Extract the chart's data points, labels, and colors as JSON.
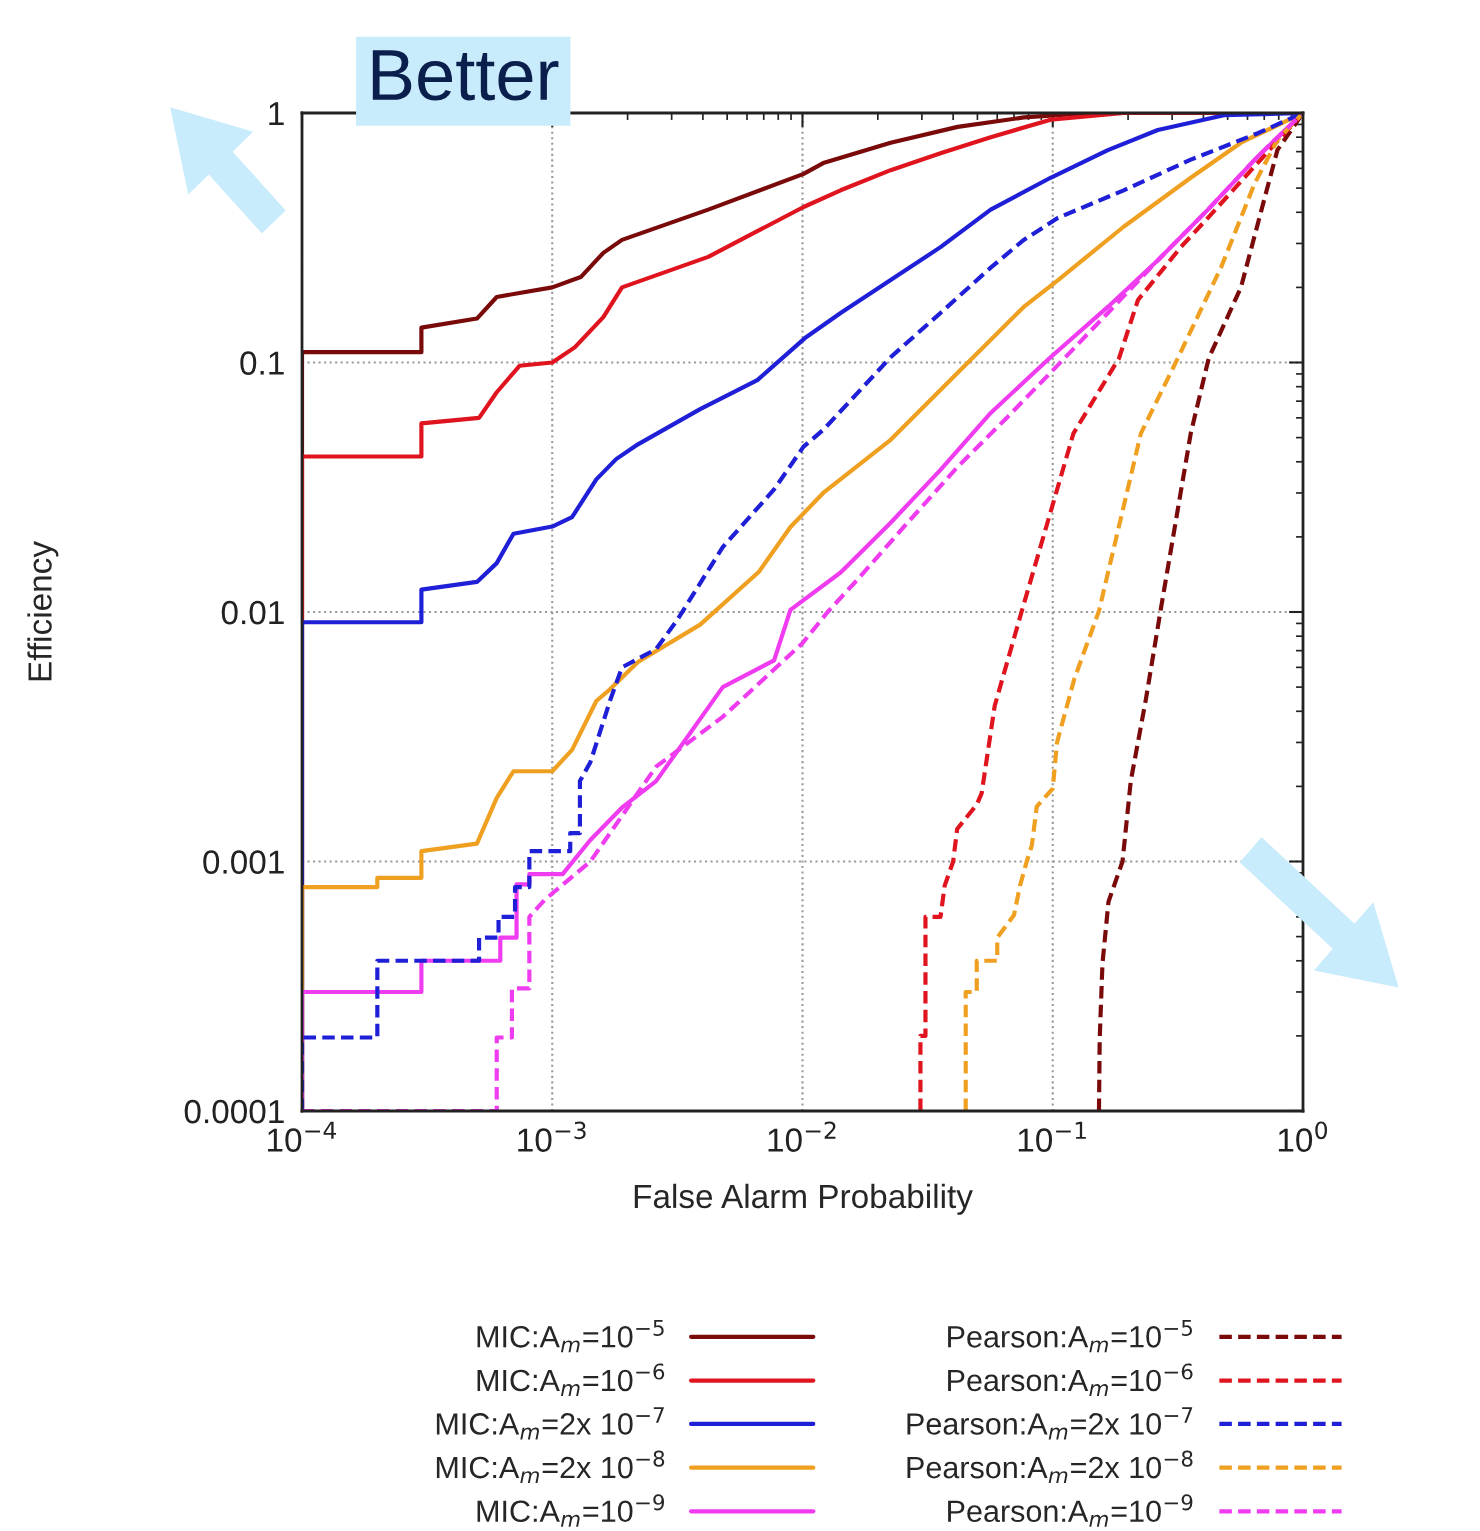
{
  "chart_data": {
    "type": "line",
    "xlabel": "False Alarm Probability",
    "ylabel": "Efficiency",
    "log": "xy",
    "grid": true,
    "legend": "bottom",
    "xlim": [
      0.0001,
      1
    ],
    "ylim": [
      0.0001,
      1
    ],
    "xticks": [
      {
        "value": 0.0001,
        "label": "10$^{−4}$"
      },
      {
        "value": 0.001,
        "label": "10$^{−3}$"
      },
      {
        "value": 0.01,
        "label": "10$^{−2}$"
      },
      {
        "value": 0.1,
        "label": "10$^{−1}$"
      },
      {
        "value": 1,
        "label": "10$^{0}$"
      }
    ],
    "yticks": [
      {
        "value": 0.0001,
        "label": "0.0001"
      },
      {
        "value": 0.001,
        "label": "0.001"
      },
      {
        "value": 0.01,
        "label": "0.01"
      },
      {
        "value": 0.1,
        "label": "0.1"
      },
      {
        "value": 1,
        "label": "1"
      }
    ],
    "annotations": [
      "Better"
    ],
    "series": [
      {
        "name": "MIC:A$_{m}$=10$^{−5}$",
        "color": "#7a0a0a",
        "line_style": "solid",
        "x": [
          0.0001,
          0.0001,
          0.0003,
          0.0003,
          0.0005,
          0.0006,
          0.00074,
          0.001,
          0.0013,
          0.0016,
          0.0019,
          0.0042,
          0.0101,
          0.0121,
          0.0225,
          0.0417,
          0.0766,
          0.143,
          1
        ],
        "values": [
          0.0001,
          0.11,
          0.11,
          0.138,
          0.15,
          0.183,
          0.19,
          0.2,
          0.22,
          0.275,
          0.31,
          0.41,
          0.57,
          0.63,
          0.76,
          0.88,
          0.96,
          1,
          1
        ]
      },
      {
        "name": "MIC:A$_{m}$=10$^{−6}$",
        "color": "#e0141e",
        "line_style": "solid",
        "x": [
          0.0001,
          0.0001,
          0.0003,
          0.0003,
          0.00051,
          0.0006,
          0.00074,
          0.001,
          0.00123,
          0.0016,
          0.0019,
          0.0042,
          0.0101,
          0.0142,
          0.0225,
          0.0356,
          0.0565,
          0.098,
          0.192,
          1
        ],
        "values": [
          0.0001,
          0.042,
          0.042,
          0.057,
          0.06,
          0.076,
          0.097,
          0.1,
          0.115,
          0.152,
          0.2,
          0.265,
          0.42,
          0.49,
          0.59,
          0.69,
          0.8,
          0.94,
          1,
          1
        ]
      },
      {
        "name": "MIC:A$_{m}$=2x 10$^{−7}$",
        "color": "#1f1fd8",
        "line_style": "solid",
        "x": [
          0.0001,
          0.0001,
          0.0003,
          0.0003,
          0.0005,
          0.0006,
          0.0007,
          0.001,
          0.0012,
          0.0015,
          0.0018,
          0.0022,
          0.0039,
          0.0066,
          0.0102,
          0.0142,
          0.0225,
          0.0356,
          0.0565,
          0.098,
          0.166,
          0.263,
          0.483,
          1
        ],
        "values": [
          0.0001,
          0.0091,
          0.0091,
          0.0123,
          0.0132,
          0.0157,
          0.0206,
          0.022,
          0.024,
          0.034,
          0.041,
          0.047,
          0.065,
          0.085,
          0.125,
          0.158,
          0.214,
          0.29,
          0.41,
          0.55,
          0.71,
          0.855,
          0.98,
          1
        ]
      },
      {
        "name": "MIC:A$_{m}$=2x 10$^{−8}$",
        "color": "#f0a020",
        "line_style": "solid",
        "x": [
          0.0001,
          0.0001,
          0.0002,
          0.0002,
          0.0003,
          0.0003,
          0.0005,
          0.0006,
          0.0007,
          0.001,
          0.0012,
          0.0015,
          0.0017,
          0.0022,
          0.0039,
          0.0067,
          0.00895,
          0.0121,
          0.0225,
          0.0417,
          0.0766,
          0.105,
          0.192,
          0.356,
          0.565,
          1
        ],
        "values": [
          0.0001,
          0.00079,
          0.00079,
          0.00086,
          0.00086,
          0.0011,
          0.00118,
          0.0018,
          0.0023,
          0.0023,
          0.0028,
          0.0044,
          0.0049,
          0.0063,
          0.0089,
          0.0145,
          0.0219,
          0.03,
          0.049,
          0.091,
          0.167,
          0.214,
          0.35,
          0.55,
          0.76,
          1
        ]
      },
      {
        "name": "MIC:A$_{m}$=10$^{−9}$",
        "color": "#f03cf0",
        "line_style": "solid",
        "x": [
          0.0001,
          0.0001,
          0.0003,
          0.0003,
          0.00062,
          0.00062,
          0.00072,
          0.00072,
          0.00081,
          0.00081,
          0.0011,
          0.00142,
          0.00192,
          0.0026,
          0.0048,
          0.0077,
          0.00895,
          0.0142,
          0.0225,
          0.0356,
          0.0565,
          0.098,
          0.166,
          0.263,
          0.417,
          0.66,
          1
        ],
        "values": [
          0.0001,
          0.0003,
          0.0003,
          0.0004,
          0.0004,
          0.000495,
          0.000495,
          0.00081,
          0.00081,
          0.00089,
          0.00089,
          0.00122,
          0.00166,
          0.0021,
          0.005,
          0.0064,
          0.0102,
          0.0144,
          0.0228,
          0.0371,
          0.0628,
          0.105,
          0.167,
          0.257,
          0.41,
          0.67,
          1
        ]
      },
      {
        "name": "Pearson:A$_{m}$=10$^{−5}$",
        "color": "#7a0a0a",
        "line_style": "dashed",
        "x": [
          0.153,
          0.154,
          0.158,
          0.167,
          0.19,
          0.205,
          0.235,
          0.27,
          0.356,
          0.42,
          0.565,
          0.7,
          0.79,
          1
        ],
        "values": [
          0.0001,
          0.000193,
          0.00039,
          0.00069,
          0.001,
          0.0021,
          0.0044,
          0.0102,
          0.052,
          0.104,
          0.2,
          0.45,
          0.71,
          1
        ]
      },
      {
        "name": "Pearson:A$_{m}$=10$^{−6}$",
        "color": "#e0141e",
        "line_style": "dashed",
        "x": [
          0.0296,
          0.0296,
          0.031,
          0.031,
          0.0356,
          0.037,
          0.04,
          0.0415,
          0.0497,
          0.052,
          0.0586,
          0.075,
          0.121,
          0.184,
          0.219,
          0.325,
          0.417,
          1
        ],
        "values": [
          0.0001,
          0.0002,
          0.0002,
          0.0006,
          0.0006,
          0.0008,
          0.001,
          0.00135,
          0.00169,
          0.00188,
          0.0042,
          0.01,
          0.052,
          0.104,
          0.178,
          0.29,
          0.38,
          1
        ]
      },
      {
        "name": "Pearson:A$_{m}$=2x 10$^{−7}$",
        "color": "#1f1fd8",
        "line_style": "dashed",
        "x": [
          0.0001,
          0.0001,
          0.0002,
          0.0002,
          0.00051,
          0.00051,
          0.00061,
          0.00061,
          0.00071,
          0.00071,
          0.00081,
          0.00081,
          0.00118,
          0.00118,
          0.00129,
          0.00129,
          0.00142,
          0.0017,
          0.0019,
          0.0026,
          0.00316,
          0.0048,
          0.0077,
          0.0101,
          0.0121,
          0.0166,
          0.0225,
          0.0356,
          0.0565,
          0.0766,
          0.105,
          0.192,
          0.356,
          0.66,
          1
        ],
        "values": [
          0.0001,
          0.000197,
          0.000197,
          0.0004,
          0.0004,
          0.000495,
          0.000495,
          0.0006,
          0.0006,
          0.00079,
          0.00079,
          0.0011,
          0.0011,
          0.0013,
          0.0013,
          0.0021,
          0.0025,
          0.0044,
          0.006,
          0.0071,
          0.0093,
          0.0182,
          0.031,
          0.046,
          0.0537,
          0.0755,
          0.105,
          0.158,
          0.24,
          0.31,
          0.38,
          0.49,
          0.65,
          0.83,
          1
        ]
      },
      {
        "name": "Pearson:A$_{m}$=2x 10$^{−8}$",
        "color": "#f0a020",
        "line_style": "dashed",
        "x": [
          0.0449,
          0.0449,
          0.0497,
          0.0497,
          0.06,
          0.06,
          0.07,
          0.074,
          0.0787,
          0.0825,
          0.0863,
          0.1,
          0.104,
          0.122,
          0.153,
          0.225,
          0.316,
          0.47,
          0.64,
          0.79,
          1
        ],
        "values": [
          0.0001,
          0.0003,
          0.0003,
          0.0004,
          0.0004,
          0.000495,
          0.00061,
          0.0008,
          0.001,
          0.00116,
          0.00166,
          0.00196,
          0.003,
          0.0054,
          0.0101,
          0.052,
          0.104,
          0.24,
          0.52,
          0.78,
          1
        ]
      },
      {
        "name": "Pearson:A$_{m}$=10$^{−9}$",
        "color": "#f03cf0",
        "line_style": "dashed",
        "x": [
          0.0001,
          0.0006,
          0.0006,
          0.00069,
          0.00069,
          0.00081,
          0.00081,
          0.00093,
          0.00142,
          0.0026,
          0.0048,
          0.01,
          0.0126,
          0.0166,
          0.0263,
          0.0417,
          0.066,
          0.098,
          0.166,
          0.263,
          0.417,
          0.66,
          1
        ],
        "values": [
          0.0001,
          0.0001,
          0.000197,
          0.000197,
          0.00031,
          0.00031,
          0.0006,
          0.0007,
          0.001,
          0.0024,
          0.0038,
          0.0075,
          0.01,
          0.0135,
          0.0228,
          0.0382,
          0.0605,
          0.091,
          0.158,
          0.257,
          0.41,
          0.67,
          1
        ]
      }
    ]
  }
}
